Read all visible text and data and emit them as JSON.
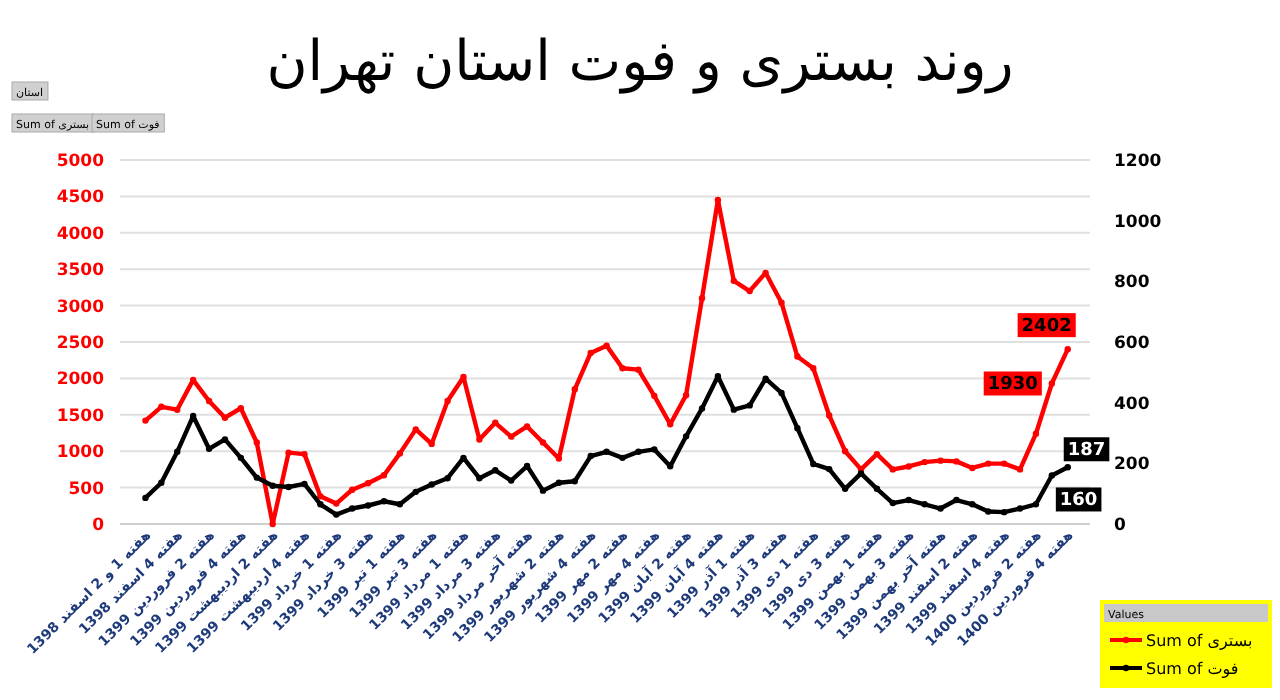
{
  "chart_data": {
    "type": "line",
    "title": "روند بستری و فوت استان تهران",
    "categories": [
      "هفته 1 و 2 اسفند 1398",
      null,
      "هفته 4 اسفند 1398",
      null,
      "هفته 2 فروردین 1399",
      null,
      "هفته 4 فروردین 1399",
      null,
      "هفته 2 اردیبهشت 1399",
      null,
      "هفته 4 اردیبهشت 1399",
      null,
      "هفته 1 خرداد 1399",
      null,
      "هفته 3 خرداد 1399",
      null,
      "هفته 1 تیر 1399",
      null,
      "هفته 3 تیر 1399",
      null,
      "هفته 1 مرداد 1399",
      null,
      "هفته 3 مرداد 1399",
      null,
      "هفته آخر مرداد 1399",
      null,
      "هفته 2 شهریور 1399",
      null,
      "هفته 4 شهریور 1399",
      null,
      "هفته 2 مهر 1399",
      null,
      "هفته 4 مهر 1399",
      null,
      "هفته 2 آبان 1399",
      null,
      "هفته 4 آبان 1399",
      null,
      "هفته 1 آذر 1399",
      null,
      "هفته 3 آذر 1399",
      null,
      "هفته 1 دی 1399",
      null,
      "هفته 3 دی 1399",
      null,
      "هفته 1 بهمن 1399",
      null,
      "هفته 3 بهمن 1399",
      null,
      "هفته آخر بهمن 1399",
      null,
      "هفته 2 اسفند 1399",
      null,
      "هفته 4 اسفند 1399",
      null,
      "هفته 2 فروردین 1400",
      null,
      "هفته 4 فروردین 1400"
    ],
    "series": [
      {
        "name": "Sum of بستری",
        "color": "#ff0000",
        "values": [
          1420,
          1610,
          1570,
          1980,
          1690,
          1460,
          1590,
          1120,
          0,
          980,
          960,
          380,
          280,
          470,
          560,
          670,
          970,
          1300,
          1100,
          1690,
          2020,
          1160,
          1390,
          1200,
          1340,
          1120,
          900,
          1850,
          2350,
          2450,
          2140,
          2120,
          1760,
          1370,
          1770,
          3100,
          4450,
          3340,
          3200,
          3450,
          3040,
          2300,
          2140,
          1490,
          1000,
          750,
          960,
          750,
          790,
          850,
          870,
          860,
          770,
          830,
          830,
          750,
          1240,
          1930,
          2402
        ],
        "value_labels": [
          null,
          null,
          null,
          null,
          null,
          null,
          null,
          null,
          null,
          null,
          null,
          null,
          null,
          null,
          null,
          null,
          null,
          null,
          null,
          null,
          null,
          null,
          null,
          null,
          null,
          null,
          null,
          null,
          null,
          null,
          null,
          null,
          null,
          null,
          null,
          null,
          null,
          null,
          null,
          null,
          null,
          null,
          null,
          null,
          null,
          null,
          null,
          null,
          null,
          null,
          null,
          null,
          null,
          null,
          null,
          null,
          null,
          "1930",
          "2402"
        ]
      },
      {
        "name": "Sum of فوت",
        "color": "#000000",
        "axis": "y2",
        "values": [
          86,
          136,
          238,
          356,
          248,
          279,
          218,
          153,
          126,
          122,
          132,
          65,
          31,
          51,
          61,
          75,
          65,
          106,
          130,
          151,
          218,
          151,
          177,
          143,
          191,
          110,
          136,
          141,
          224,
          238,
          218,
          238,
          246,
          190,
          289,
          381,
          487,
          377,
          391,
          479,
          432,
          316,
          198,
          181,
          116,
          167,
          116,
          69,
          79,
          65,
          51,
          79,
          65,
          41,
          39,
          51,
          65,
          160,
          187
        ],
        "value_labels": [
          null,
          null,
          null,
          null,
          null,
          null,
          null,
          null,
          null,
          null,
          null,
          null,
          null,
          null,
          null,
          null,
          null,
          null,
          null,
          null,
          null,
          null,
          null,
          null,
          null,
          null,
          null,
          null,
          null,
          null,
          null,
          null,
          null,
          null,
          null,
          null,
          null,
          null,
          null,
          null,
          null,
          null,
          null,
          null,
          null,
          null,
          null,
          null,
          null,
          null,
          null,
          null,
          null,
          null,
          null,
          null,
          null,
          "160",
          "187"
        ]
      }
    ],
    "ylim": [
      0,
      5000
    ],
    "yticks": [
      0,
      500,
      1000,
      1500,
      2000,
      2500,
      3000,
      3500,
      4000,
      4500,
      5000
    ],
    "y2lim": [
      0,
      1200
    ],
    "y2ticks": [
      0,
      200,
      400,
      600,
      800,
      1000,
      1200
    ],
    "grid": "y",
    "legend": "bottom right",
    "legend_title": "Values",
    "marker": "circle",
    "annotations": [
      "استان",
      "Sum of بستری",
      "Sum of فوت"
    ]
  }
}
